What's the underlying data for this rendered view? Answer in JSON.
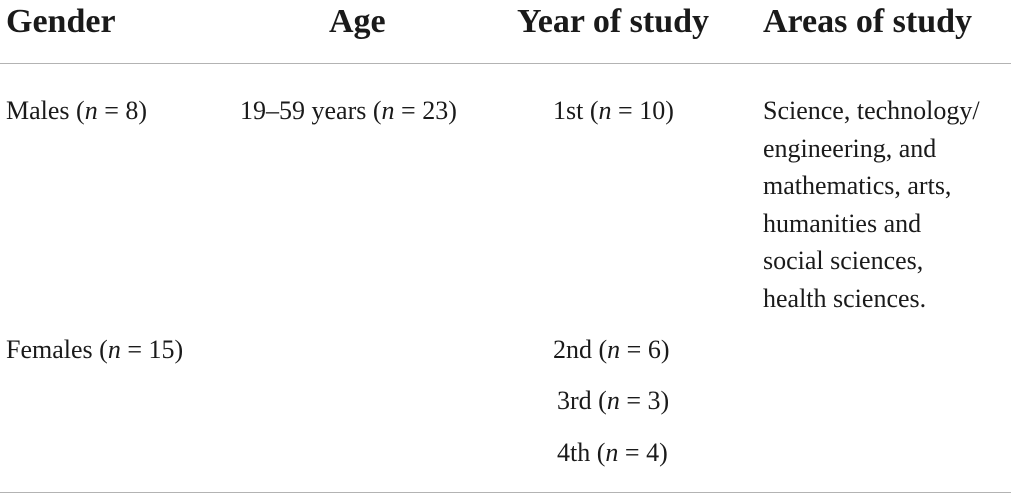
{
  "table": {
    "headers": {
      "gender": "Gender",
      "age": "Age",
      "year": "Year of study",
      "areas": "Areas of study"
    },
    "n_symbol": "n",
    "equals": " = ",
    "rows": [
      {
        "gender": {
          "label": "Males",
          "count": "8"
        },
        "age": {
          "label": "19–59 years",
          "count": "23"
        },
        "year": {
          "label": "1st",
          "count": "10"
        },
        "areas_lines": [
          "Science, technology/",
          "engineering, and",
          "mathematics, arts,",
          "humanities and",
          "social sciences,",
          "health sciences."
        ]
      },
      {
        "gender": {
          "label": "Females",
          "count": "15"
        },
        "year": {
          "label": "2nd",
          "count": "6"
        }
      },
      {
        "year": {
          "label": "3rd",
          "count": "3"
        }
      },
      {
        "year": {
          "label": "4th",
          "count": "4"
        }
      }
    ]
  }
}
